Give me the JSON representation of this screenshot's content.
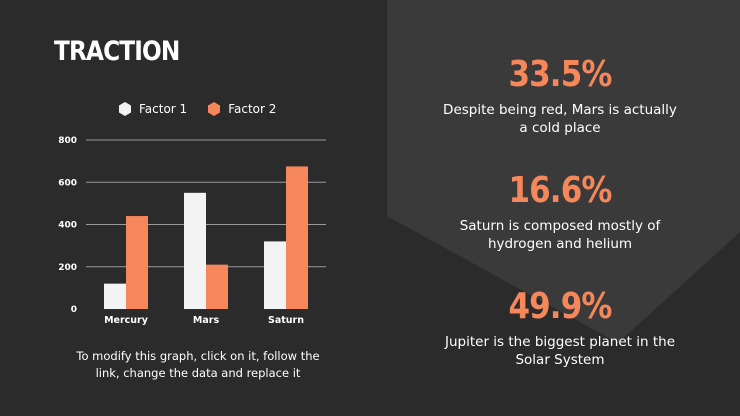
{
  "title": "TRACTION",
  "legend": {
    "series_1": "Factor 1",
    "series_2": "Factor 2"
  },
  "colors": {
    "factor_1": "#f3f3f3",
    "factor_2": "#f5875b",
    "background": "#2b2b2b",
    "panel": "#3a3a3a",
    "accent_text": "#f5875b"
  },
  "chart_data": {
    "type": "bar",
    "categories": [
      "Mercury",
      "Mars",
      "Saturn"
    ],
    "series": [
      {
        "name": "Factor 1",
        "values": [
          120,
          550,
          320
        ]
      },
      {
        "name": "Factor 2",
        "values": [
          440,
          210,
          675
        ]
      }
    ],
    "ylim": [
      0,
      800
    ],
    "yticks": [
      "0",
      "200",
      "400",
      "600",
      "800"
    ],
    "grid": true,
    "legend_position": "top"
  },
  "caption": "To modify this graph, click on it, follow the link, change the data and replace it",
  "stats": [
    {
      "value": "33.5%",
      "description": "Despite being red, Mars is actually a cold place"
    },
    {
      "value": "16.6%",
      "description": "Saturn is composed mostly of hydrogen and helium"
    },
    {
      "value": "49.9%",
      "description": "Jupiter is the biggest planet in the Solar System"
    }
  ]
}
